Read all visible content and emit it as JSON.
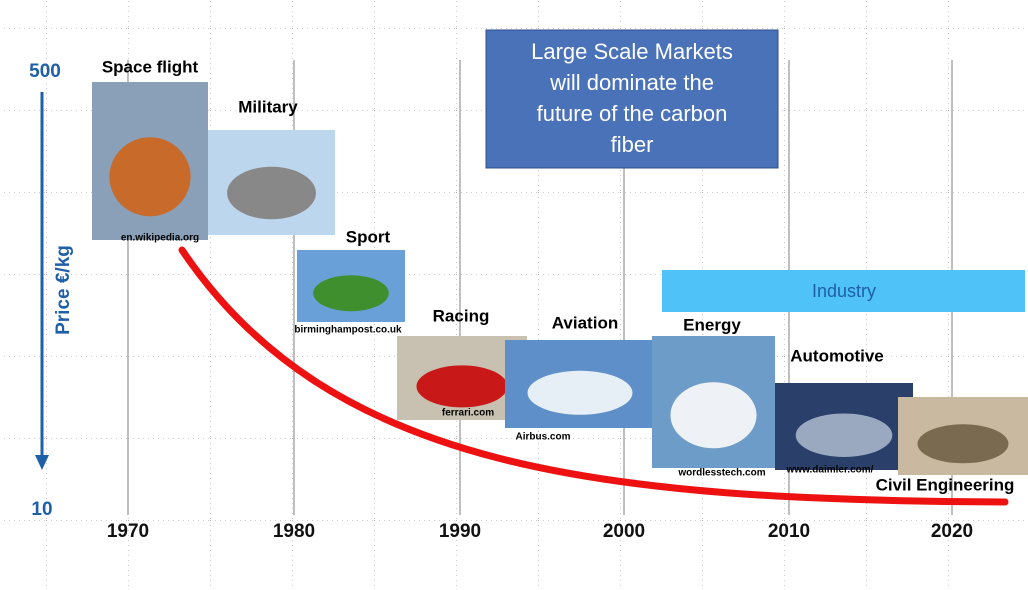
{
  "axis": {
    "top": "500",
    "bottom": "10",
    "label": "Price €/kg"
  },
  "years": [
    "1970",
    "1980",
    "1990",
    "2000",
    "2010",
    "2020"
  ],
  "callout": [
    "Large Scale Markets",
    "will dominate the",
    "future of the carbon",
    "fiber"
  ],
  "industry": "Industry",
  "applications": [
    {
      "label": "Space flight",
      "source": "en.wikipedia.org"
    },
    {
      "label": "Military"
    },
    {
      "label": "Sport",
      "source": "birminghampost.co.uk"
    },
    {
      "label": "Racing",
      "source": "ferrari.com"
    },
    {
      "label": "Aviation",
      "source": "Airbus.com"
    },
    {
      "label": "Energy",
      "source": "wordlesstech.com"
    },
    {
      "label": "Automotive",
      "source": "www.daimler.com/"
    },
    {
      "label": "Civil Engineering"
    }
  ]
}
